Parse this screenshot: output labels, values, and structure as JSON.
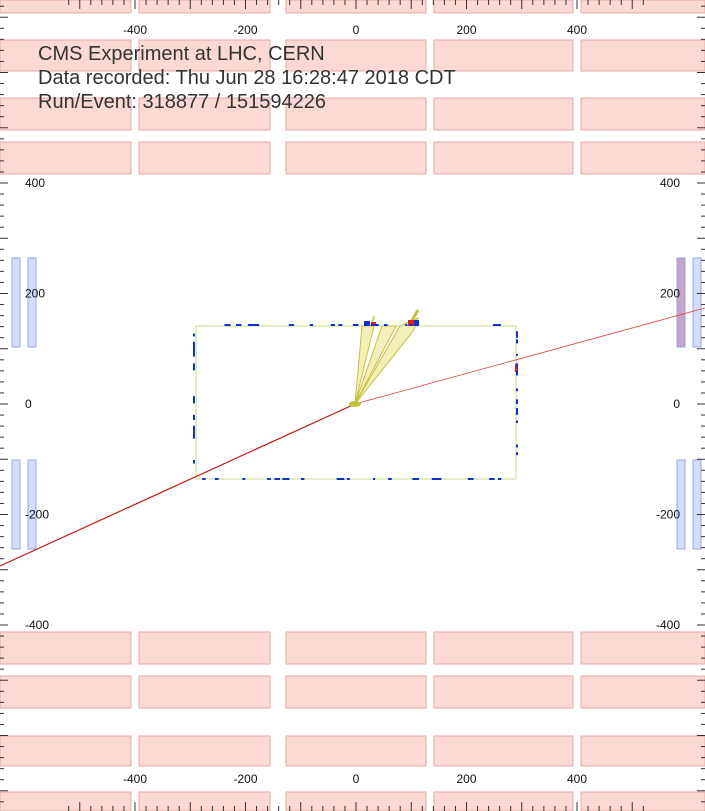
{
  "info": {
    "experiment": "CMS Experiment at LHC, CERN",
    "recorded": "Data recorded: Thu Jun 28 16:28:47 2018 CDT",
    "run_event": "Run/Event: 318877 / 151594226"
  },
  "axes": {
    "x_ticks": [
      -400,
      -200,
      0,
      200,
      400
    ],
    "y_ticks": [
      400,
      200,
      0,
      -200,
      -400
    ]
  },
  "colors": {
    "muon_chamber": "#fdd9d6",
    "muon_chamber_border": "#e8a8a4",
    "endcap": "#d6dcfb",
    "endcap_border": "#9aa6e6",
    "endcap_hit": "#c8a4c8",
    "tracker_outline": "#c9d88a",
    "muon_track": "#d02020",
    "jet_cone": "#f2efb8",
    "jet_edge": "#c8c040",
    "hits": "#1030d0"
  }
}
